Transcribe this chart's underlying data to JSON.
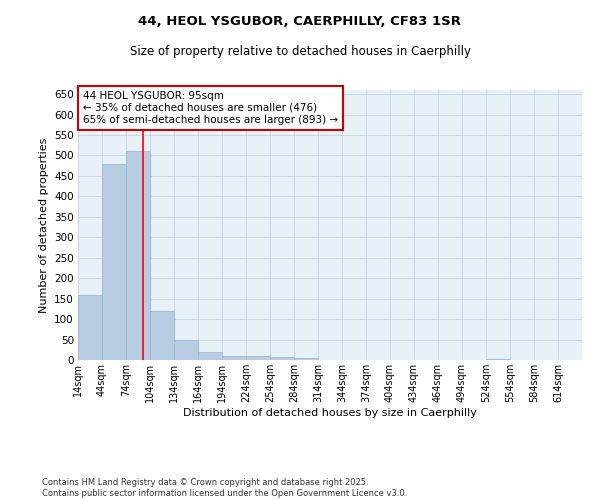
{
  "title_line1": "44, HEOL YSGUBOR, CAERPHILLY, CF83 1SR",
  "title_line2": "Size of property relative to detached houses in Caerphilly",
  "xlabel": "Distribution of detached houses by size in Caerphilly",
  "ylabel": "Number of detached properties",
  "footer_line1": "Contains HM Land Registry data © Crown copyright and database right 2025.",
  "footer_line2": "Contains public sector information licensed under the Open Government Licence v3.0.",
  "bar_color": "#b8cce4",
  "bar_edge_color": "#9ab8d4",
  "grid_color": "#c8d8e8",
  "bg_color": "#e8f0f8",
  "red_line_x": 95,
  "annotation_text": "44 HEOL YSGUBOR: 95sqm\n← 35% of detached houses are smaller (476)\n65% of semi-detached houses are larger (893) →",
  "annotation_box_color": "#ffffff",
  "annotation_border_color": "#cc0000",
  "categories": [
    "14sqm",
    "44sqm",
    "74sqm",
    "104sqm",
    "134sqm",
    "164sqm",
    "194sqm",
    "224sqm",
    "254sqm",
    "284sqm",
    "314sqm",
    "344sqm",
    "374sqm",
    "404sqm",
    "434sqm",
    "464sqm",
    "494sqm",
    "524sqm",
    "554sqm",
    "584sqm",
    "614sqm"
  ],
  "cat_starts": [
    14,
    44,
    74,
    104,
    134,
    164,
    194,
    224,
    254,
    284,
    314,
    344,
    374,
    404,
    434,
    464,
    494,
    524,
    554,
    584,
    614
  ],
  "values": [
    160,
    480,
    510,
    120,
    50,
    20,
    10,
    10,
    8,
    5,
    0,
    0,
    0,
    0,
    0,
    0,
    0,
    2,
    0,
    0,
    0
  ],
  "ylim": [
    0,
    660
  ],
  "yticks": [
    0,
    50,
    100,
    150,
    200,
    250,
    300,
    350,
    400,
    450,
    500,
    550,
    600,
    650
  ],
  "bin_width": 30
}
